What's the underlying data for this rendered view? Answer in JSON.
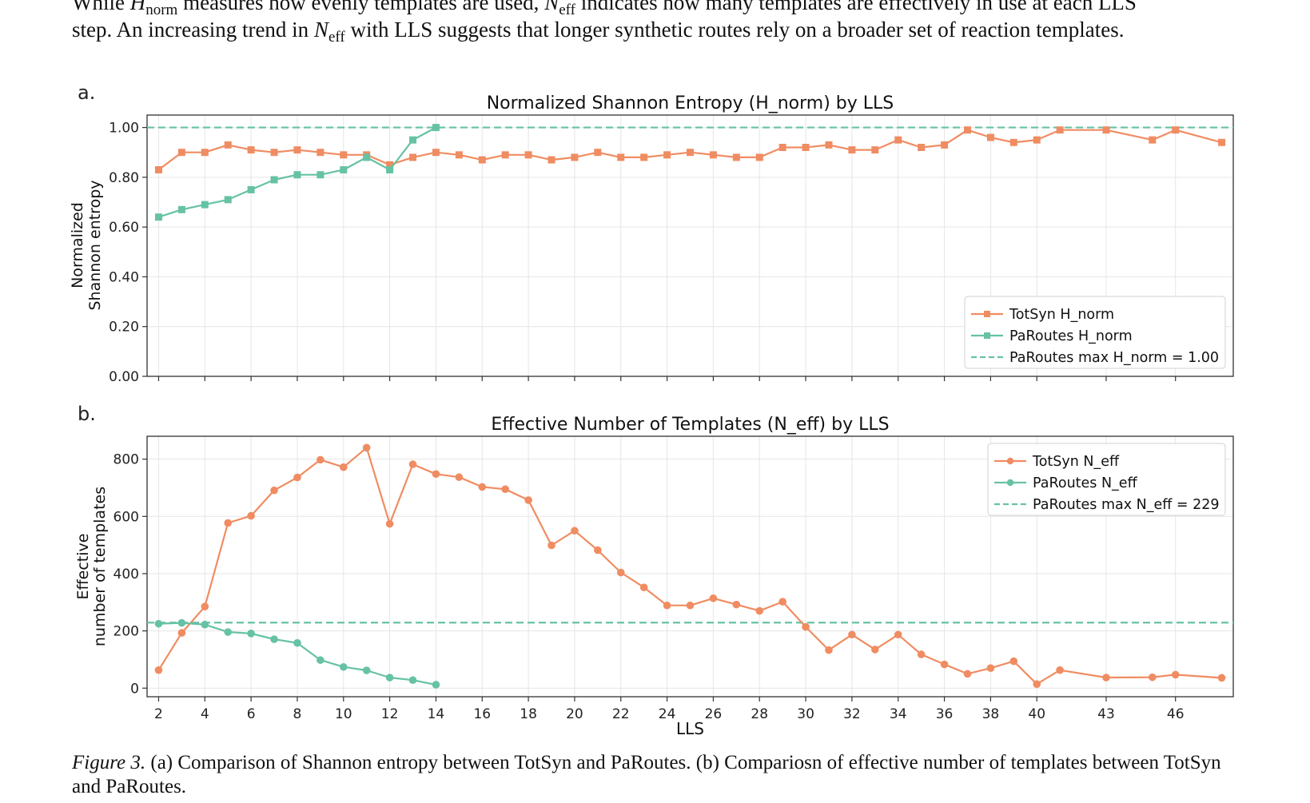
{
  "text": {
    "line1_pre": "While ",
    "line1_hsym": "H",
    "line1_hsub": "norm",
    "line1_mid": " measures how evenly templates are used, ",
    "line1_nsym": "N",
    "line1_nsub": "eff",
    "line1_post": " indicates how many templates are effectively in use at each LLS",
    "line2_pre": "step. An increasing trend in ",
    "line2_nsym": "N",
    "line2_nsub": "eff",
    "line2_post": " with LLS suggests that longer synthetic routes rely on a broader set of reaction templates.",
    "caption_label": "Figure 3.",
    "caption_body": " (a) Comparison of Shannon entropy between TotSyn and PaRoutes. (b) Compariosn of effective number of templates between TotSyn and PaRoutes."
  },
  "colors": {
    "totsyn": "#f08c62",
    "paroutes": "#66c2a5",
    "grid": "#e6e6e6"
  },
  "chart_data": [
    {
      "panel": "a.",
      "type": "line",
      "title": "Normalized Shannon Entropy (H_norm) by LLS",
      "xlabel": "",
      "ylabel": [
        "Normalized",
        "Shannon entropy"
      ],
      "xlim": [
        1.5,
        48.5
      ],
      "ylim": [
        0,
        1.05
      ],
      "xticks": [],
      "yticks": [
        0,
        0.2,
        0.4,
        0.6,
        0.8,
        1.0
      ],
      "ytick_labels": [
        "0.00",
        "0.20",
        "0.40",
        "0.60",
        "0.80",
        "1.00"
      ],
      "grid": true,
      "legend_position": "lower-right",
      "marker": "square",
      "series": [
        {
          "name": "TotSyn H_norm",
          "color_key": "totsyn",
          "x": [
            2,
            3,
            4,
            5,
            6,
            7,
            8,
            9,
            10,
            11,
            12,
            13,
            14,
            15,
            16,
            17,
            18,
            19,
            20,
            21,
            22,
            23,
            24,
            25,
            26,
            27,
            28,
            29,
            30,
            31,
            32,
            33,
            34,
            35,
            36,
            37,
            38,
            39,
            40,
            41,
            43,
            45,
            46,
            48
          ],
          "y": [
            0.83,
            0.9,
            0.9,
            0.93,
            0.91,
            0.9,
            0.91,
            0.9,
            0.89,
            0.89,
            0.85,
            0.88,
            0.9,
            0.89,
            0.87,
            0.89,
            0.89,
            0.87,
            0.88,
            0.9,
            0.88,
            0.88,
            0.89,
            0.9,
            0.89,
            0.88,
            0.88,
            0.92,
            0.92,
            0.93,
            0.91,
            0.91,
            0.95,
            0.92,
            0.93,
            0.99,
            0.96,
            0.94,
            0.95,
            0.99,
            0.99,
            0.95,
            0.99,
            0.94
          ]
        },
        {
          "name": "PaRoutes H_norm",
          "color_key": "paroutes",
          "x": [
            2,
            3,
            4,
            5,
            6,
            7,
            8,
            9,
            10,
            11,
            12,
            13,
            14
          ],
          "y": [
            0.64,
            0.67,
            0.69,
            0.71,
            0.75,
            0.79,
            0.81,
            0.81,
            0.83,
            0.88,
            0.83,
            0.95,
            1.0
          ]
        }
      ],
      "hline": {
        "name": "PaRoutes max H_norm = 1.00",
        "y": 1.0,
        "color_key": "paroutes"
      }
    },
    {
      "panel": "b.",
      "type": "line",
      "title": "Effective Number of Templates (N_eff) by LLS",
      "xlabel": "LLS",
      "ylabel": [
        "Effective",
        "number of templates"
      ],
      "xlim": [
        1.5,
        48.5
      ],
      "ylim": [
        -30,
        880
      ],
      "xticks": [
        2,
        4,
        6,
        8,
        10,
        12,
        14,
        16,
        18,
        20,
        22,
        24,
        26,
        28,
        30,
        32,
        34,
        36,
        38,
        40,
        43,
        46
      ],
      "xtick_labels": [
        "2",
        "4",
        "6",
        "8",
        "10",
        "12",
        "14",
        "16",
        "18",
        "20",
        "22",
        "24",
        "26",
        "28",
        "30",
        "32",
        "34",
        "36",
        "38",
        "40",
        "43",
        "46"
      ],
      "yticks": [
        0,
        200,
        400,
        600,
        800
      ],
      "ytick_labels": [
        "0",
        "200",
        "400",
        "600",
        "800"
      ],
      "grid": true,
      "legend_position": "upper-right",
      "marker": "circle",
      "series": [
        {
          "name": "TotSyn N_eff",
          "color_key": "totsyn",
          "x": [
            2,
            3,
            4,
            5,
            6,
            7,
            8,
            9,
            10,
            11,
            12,
            13,
            14,
            15,
            16,
            17,
            18,
            19,
            20,
            21,
            22,
            23,
            24,
            25,
            26,
            27,
            28,
            29,
            30,
            31,
            32,
            33,
            34,
            35,
            36,
            37,
            38,
            39,
            40,
            41,
            43,
            45,
            46,
            48
          ],
          "y": [
            63,
            193,
            285,
            577,
            602,
            691,
            736,
            798,
            772,
            840,
            574,
            782,
            748,
            737,
            703,
            695,
            657,
            499,
            550,
            482,
            404,
            352,
            289,
            289,
            314,
            292,
            270,
            302,
            214,
            133,
            187,
            135,
            187,
            118,
            83,
            50,
            70,
            94,
            14,
            63,
            37,
            38,
            47,
            36
          ]
        },
        {
          "name": "PaRoutes N_eff",
          "color_key": "paroutes",
          "x": [
            2,
            3,
            4,
            5,
            6,
            7,
            8,
            9,
            10,
            11,
            12,
            13,
            14
          ],
          "y": [
            225,
            228,
            222,
            196,
            191,
            171,
            158,
            98,
            74,
            62,
            37,
            28,
            12
          ]
        }
      ],
      "hline": {
        "name": "PaRoutes max N_eff = 229",
        "y": 229,
        "color_key": "paroutes"
      }
    }
  ]
}
